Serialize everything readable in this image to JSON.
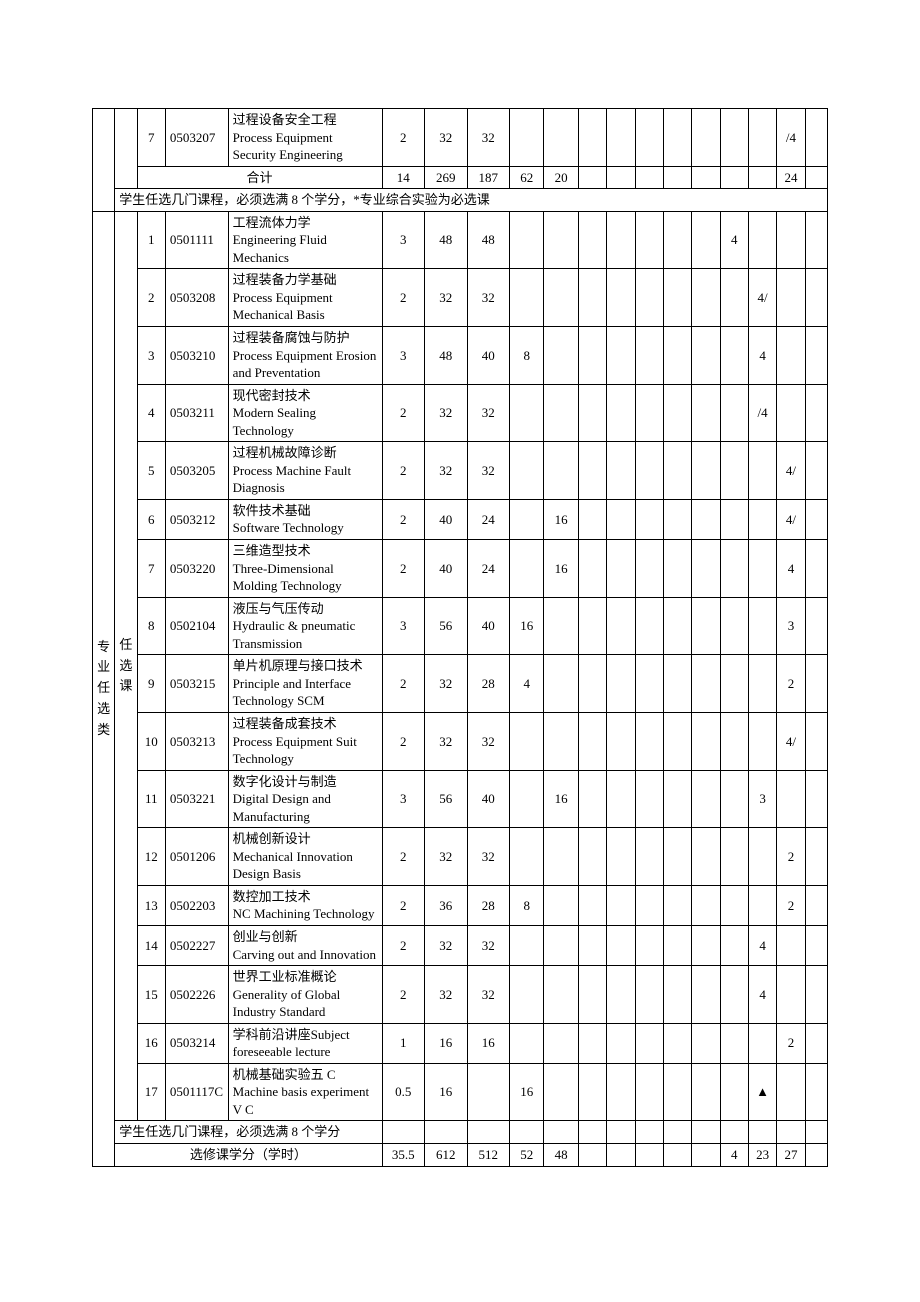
{
  "section1_label": "",
  "section1_sub": "",
  "section2_label": "专业任选类",
  "section2_sub": "任选课",
  "top_row": {
    "num": "7",
    "code": "0503207",
    "name": "过程设备安全工程\nProcess Equipment Security Engineering",
    "v5": "2",
    "v6": "32",
    "v7": "32",
    "v8": "",
    "v9": "",
    "v10": "",
    "v11": "",
    "v12": "",
    "v13": "",
    "v14": "",
    "v15": "",
    "v16": "",
    "v17": "/4",
    "v18": ""
  },
  "total1": {
    "label": "合计",
    "v5": "14",
    "v6": "269",
    "v7": "187",
    "v8": "62",
    "v9": "20",
    "v10": "",
    "v11": "",
    "v12": "",
    "v13": "",
    "v14": "",
    "v15": "",
    "v16": "",
    "v17": "24",
    "v18": ""
  },
  "note1": "学生任选几门课程，必须选满 8 个学分，*专业综合实验为必选课",
  "rows": [
    {
      "num": "1",
      "code": "0501111",
      "name": "工程流体力学\nEngineering Fluid  Mechanics",
      "v5": "3",
      "v6": "48",
      "v7": "48",
      "v8": "",
      "v9": "",
      "v10": "",
      "v11": "",
      "v12": "",
      "v13": "",
      "v14": "",
      "v15": "4",
      "v16": "",
      "v17": "",
      "v18": ""
    },
    {
      "num": "2",
      "code": "0503208",
      "name": "过程装备力学基础\nProcess Equipment Mechanical Basis",
      "v5": "2",
      "v6": "32",
      "v7": "32",
      "v8": "",
      "v9": "",
      "v10": "",
      "v11": "",
      "v12": "",
      "v13": "",
      "v14": "",
      "v15": "",
      "v16": "4/",
      "v17": "",
      "v18": ""
    },
    {
      "num": "3",
      "code": "0503210",
      "name": "过程装备腐蚀与防护\nProcess Equipment  Erosion and  Preventation",
      "v5": "3",
      "v6": "48",
      "v7": "40",
      "v8": "8",
      "v9": "",
      "v10": "",
      "v11": "",
      "v12": "",
      "v13": "",
      "v14": "",
      "v15": "",
      "v16": "4",
      "v17": "",
      "v18": ""
    },
    {
      "num": "4",
      "code": "0503211",
      "name": "现代密封技术\nModern Sealing Technology",
      "v5": "2",
      "v6": "32",
      "v7": "32",
      "v8": "",
      "v9": "",
      "v10": "",
      "v11": "",
      "v12": "",
      "v13": "",
      "v14": "",
      "v15": "",
      "v16": "/4",
      "v17": "",
      "v18": ""
    },
    {
      "num": "5",
      "code": "0503205",
      "name": "过程机械故障诊断\nProcess Machine Fault Diagnosis",
      "v5": "2",
      "v6": "32",
      "v7": "32",
      "v8": "",
      "v9": "",
      "v10": "",
      "v11": "",
      "v12": "",
      "v13": "",
      "v14": "",
      "v15": "",
      "v16": "",
      "v17": "4/",
      "v18": ""
    },
    {
      "num": "6",
      "code": "0503212",
      "name": "软件技术基础\nSoftware Technology",
      "v5": "2",
      "v6": "40",
      "v7": "24",
      "v8": "",
      "v9": "16",
      "v10": "",
      "v11": "",
      "v12": "",
      "v13": "",
      "v14": "",
      "v15": "",
      "v16": "",
      "v17": "4/",
      "v18": ""
    },
    {
      "num": "7",
      "code": "0503220",
      "name": "三维造型技术\nThree-Dimensional Molding Technology",
      "v5": "2",
      "v6": "40",
      "v7": "24",
      "v8": "",
      "v9": "16",
      "v10": "",
      "v11": "",
      "v12": "",
      "v13": "",
      "v14": "",
      "v15": "",
      "v16": "",
      "v17": "4",
      "v18": ""
    },
    {
      "num": "8",
      "code": "0502104",
      "name": "液压与气压传动\nHydraulic & pneumatic Transmission",
      "v5": "3",
      "v6": "56",
      "v7": "40",
      "v8": "16",
      "v9": "",
      "v10": "",
      "v11": "",
      "v12": "",
      "v13": "",
      "v14": "",
      "v15": "",
      "v16": "",
      "v17": "3",
      "v18": ""
    },
    {
      "num": "9",
      "code": "0503215",
      "name": "单片机原理与接口技术\nPrinciple and Interface Technology SCM",
      "v5": "2",
      "v6": "32",
      "v7": "28",
      "v8": "4",
      "v9": "",
      "v10": "",
      "v11": "",
      "v12": "",
      "v13": "",
      "v14": "",
      "v15": "",
      "v16": "",
      "v17": "2",
      "v18": ""
    },
    {
      "num": "10",
      "code": "0503213",
      "name": "过程装备成套技术\nProcess Equipment Suit Technology",
      "v5": "2",
      "v6": "32",
      "v7": "32",
      "v8": "",
      "v9": "",
      "v10": "",
      "v11": "",
      "v12": "",
      "v13": "",
      "v14": "",
      "v15": "",
      "v16": "",
      "v17": "4/",
      "v18": ""
    },
    {
      "num": "11",
      "code": "0503221",
      "name": "数字化设计与制造\nDigital Design and Manufacturing",
      "v5": "3",
      "v6": "56",
      "v7": "40",
      "v8": "",
      "v9": "16",
      "v10": "",
      "v11": "",
      "v12": "",
      "v13": "",
      "v14": "",
      "v15": "",
      "v16": "3",
      "v17": "",
      "v18": ""
    },
    {
      "num": "12",
      "code": "0501206",
      "name": "机械创新设计\nMechanical Innovation Design Basis",
      "v5": "2",
      "v6": "32",
      "v7": "32",
      "v8": "",
      "v9": "",
      "v10": "",
      "v11": "",
      "v12": "",
      "v13": "",
      "v14": "",
      "v15": "",
      "v16": "",
      "v17": "2",
      "v18": ""
    },
    {
      "num": "13",
      "code": "0502203",
      "name": "数控加工技术\nNC Machining Technology",
      "v5": "2",
      "v6": "36",
      "v7": "28",
      "v8": "8",
      "v9": "",
      "v10": "",
      "v11": "",
      "v12": "",
      "v13": "",
      "v14": "",
      "v15": "",
      "v16": "",
      "v17": "2",
      "v18": ""
    },
    {
      "num": "14",
      "code": "0502227",
      "name": "创业与创新\nCarving out and Innovation",
      "v5": "2",
      "v6": "32",
      "v7": "32",
      "v8": "",
      "v9": "",
      "v10": "",
      "v11": "",
      "v12": "",
      "v13": "",
      "v14": "",
      "v15": "",
      "v16": "4",
      "v17": "",
      "v18": ""
    },
    {
      "num": "15",
      "code": "0502226",
      "name": "世界工业标准概论\nGenerality of Global Industry Standard",
      "v5": "2",
      "v6": "32",
      "v7": "32",
      "v8": "",
      "v9": "",
      "v10": "",
      "v11": "",
      "v12": "",
      "v13": "",
      "v14": "",
      "v15": "",
      "v16": "4",
      "v17": "",
      "v18": ""
    },
    {
      "num": "16",
      "code": "0503214",
      "name": "学科前沿讲座Subject foreseeable lecture",
      "v5": "1",
      "v6": "16",
      "v7": "16",
      "v8": "",
      "v9": "",
      "v10": "",
      "v11": "",
      "v12": "",
      "v13": "",
      "v14": "",
      "v15": "",
      "v16": "",
      "v17": "2",
      "v18": ""
    },
    {
      "num": "17",
      "code": "0501117C",
      "name": "机械基础实验五 C\nMachine basis experiment V C",
      "v5": "0.5",
      "v6": "16",
      "v7": "",
      "v8": "16",
      "v9": "",
      "v10": "",
      "v11": "",
      "v12": "",
      "v13": "",
      "v14": "",
      "v15": "",
      "v16": "▲",
      "v17": "",
      "v18": ""
    }
  ],
  "note2": "学生任选几门课程，必须选满 8 个学分",
  "total2": {
    "label": "选修课学分（学时）",
    "v5": "35.5",
    "v6": "612",
    "v7": "512",
    "v8": "52",
    "v9": "48",
    "v10": "",
    "v11": "",
    "v12": "",
    "v13": "",
    "v14": "",
    "v15": "4",
    "v16": "23",
    "v17": "27",
    "v18": ""
  }
}
